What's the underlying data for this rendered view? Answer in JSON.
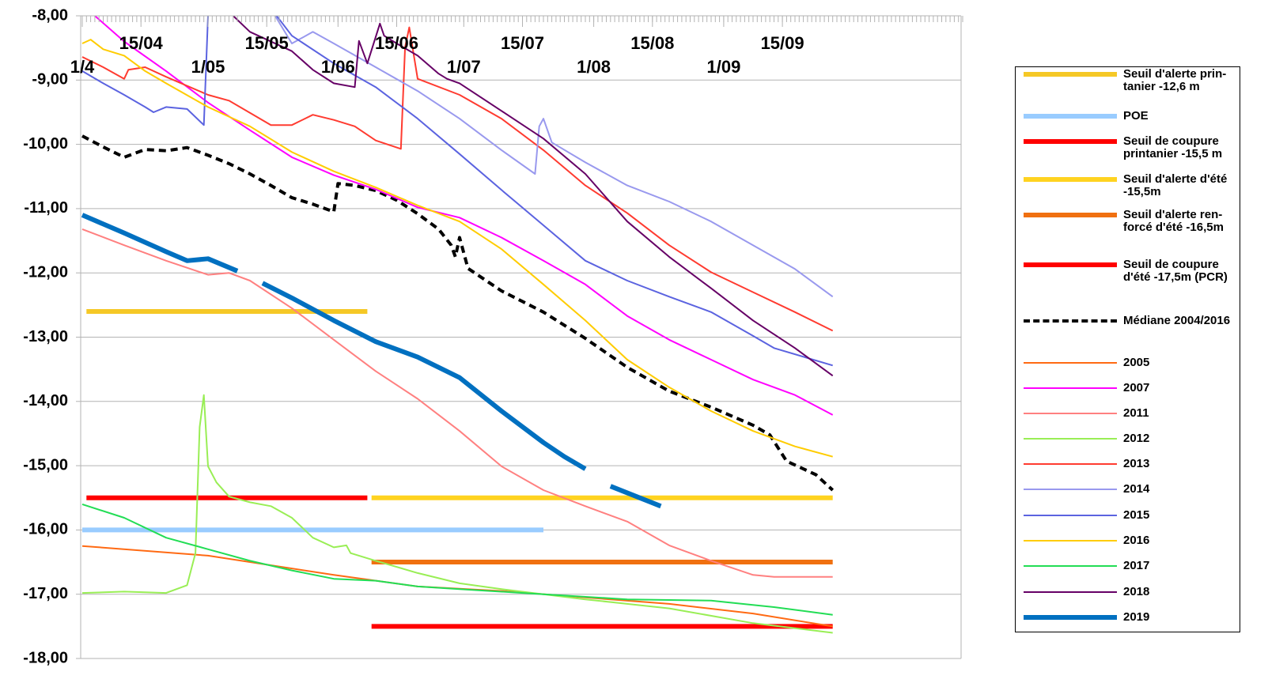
{
  "chart_data": {
    "type": "line",
    "xlim": [
      0,
      210
    ],
    "xticks": [
      {
        "value": 0,
        "label": "1/4"
      },
      {
        "value": 14,
        "label": "15/04"
      },
      {
        "value": 30,
        "label": "1/05"
      },
      {
        "value": 44,
        "label": "15/05"
      },
      {
        "value": 61,
        "label": "1/06"
      },
      {
        "value": 75,
        "label": "15/06"
      },
      {
        "value": 91,
        "label": "1/07"
      },
      {
        "value": 105,
        "label": "15/07"
      },
      {
        "value": 122,
        "label": "1/08"
      },
      {
        "value": 136,
        "label": "15/08"
      },
      {
        "value": 153,
        "label": "1/09"
      },
      {
        "value": 167,
        "label": "15/09"
      }
    ],
    "ylim": [
      -18,
      -8
    ],
    "yticks": [
      {
        "value": -8,
        "label": "-8,00"
      },
      {
        "value": -9,
        "label": "-9,00"
      },
      {
        "value": -10,
        "label": "-10,00"
      },
      {
        "value": -11,
        "label": "-11,00"
      },
      {
        "value": -12,
        "label": "-12,00"
      },
      {
        "value": -13,
        "label": "-13,00"
      },
      {
        "value": -14,
        "label": "-14,00"
      },
      {
        "value": -15,
        "label": "-15,00"
      },
      {
        "value": -16,
        "label": "-16,00"
      },
      {
        "value": -17,
        "label": "-17,00"
      },
      {
        "value": -18,
        "label": "-18,00"
      }
    ],
    "grid": true,
    "legend": "right",
    "series": [
      {
        "name": "Seuil d'alerte prin-tanier -12,6 m",
        "color": "#f5c826",
        "weight": "thick",
        "x": [
          1,
          68
        ],
        "values": [
          -12.6,
          -12.6
        ]
      },
      {
        "name": "POE",
        "color": "#99ccff",
        "weight": "thick",
        "x": [
          0,
          110
        ],
        "values": [
          -16,
          -16
        ]
      },
      {
        "name": "Seuil de coupure printanier -15,5 m",
        "color": "#ff0000",
        "weight": "thick",
        "x": [
          1,
          68
        ],
        "values": [
          -15.5,
          -15.5
        ]
      },
      {
        "name": "Seuil d'alerte d'été -15,5m",
        "color": "#ffd320",
        "weight": "thick",
        "x": [
          69,
          179
        ],
        "values": [
          -15.5,
          -15.5
        ]
      },
      {
        "name": "Seuil d'alerte ren-forcé d'été -16,5m",
        "color": "#f07010",
        "weight": "thick",
        "x": [
          69,
          179
        ],
        "values": [
          -16.5,
          -16.5
        ]
      },
      {
        "name": "Seuil de coupure d'été -17,5m (PCR)",
        "color": "#ff0000",
        "weight": "thick",
        "x": [
          69,
          179
        ],
        "values": [
          -17.5,
          -17.5
        ]
      },
      {
        "name": "Médiane 2004/2016",
        "color": "#000000",
        "weight": "medium",
        "line_style": "dashed",
        "x": [
          0,
          5,
          10,
          15,
          20,
          25,
          30,
          35,
          40,
          45,
          50,
          55,
          60,
          61,
          65,
          70,
          75,
          80,
          85,
          88,
          89,
          90,
          92,
          100,
          110,
          120,
          130,
          140,
          150,
          160,
          164,
          168,
          175,
          179
        ],
        "values": [
          -9.87,
          -10.04,
          -10.2,
          -10.08,
          -10.1,
          -10.05,
          -10.17,
          -10.3,
          -10.46,
          -10.64,
          -10.83,
          -10.93,
          -11.05,
          -10.61,
          -10.64,
          -10.72,
          -10.87,
          -11.08,
          -11.32,
          -11.57,
          -11.75,
          -11.45,
          -11.93,
          -12.28,
          -12.61,
          -13.02,
          -13.47,
          -13.84,
          -14.09,
          -14.37,
          -14.52,
          -14.93,
          -15.14,
          -15.38
        ]
      },
      {
        "name": "2005",
        "color": "#ff6a13",
        "x": [
          0,
          30,
          60,
          80,
          100,
          120,
          140,
          160,
          179
        ],
        "values": [
          -16.25,
          -16.4,
          -16.7,
          -16.88,
          -16.95,
          -17.05,
          -17.15,
          -17.3,
          -17.5
        ]
      },
      {
        "name": "2007",
        "color": "#ff00ff",
        "x": [
          3,
          10,
          20,
          30,
          40,
          50,
          60,
          70,
          80,
          90,
          100,
          110,
          120,
          130,
          140,
          150,
          160,
          170,
          179
        ],
        "values": [
          -8.0,
          -8.4,
          -8.86,
          -9.35,
          -9.78,
          -10.2,
          -10.48,
          -10.7,
          -10.98,
          -11.14,
          -11.45,
          -11.81,
          -12.18,
          -12.67,
          -13.04,
          -13.35,
          -13.66,
          -13.9,
          -14.21
        ]
      },
      {
        "name": "2011",
        "color": "#ff8080",
        "x": [
          0,
          10,
          20,
          30,
          35,
          40,
          50,
          60,
          70,
          80,
          90,
          100,
          110,
          120,
          130,
          140,
          150,
          160,
          165,
          179
        ],
        "values": [
          -11.32,
          -11.57,
          -11.81,
          -12.03,
          -12.0,
          -12.12,
          -12.55,
          -13.04,
          -13.53,
          -13.96,
          -14.46,
          -15.01,
          -15.38,
          -15.63,
          -15.87,
          -16.24,
          -16.48,
          -16.7,
          -16.73,
          -16.73
        ]
      },
      {
        "name": "2012",
        "color": "#99ee55",
        "x": [
          0,
          10,
          20,
          25,
          27,
          28,
          29,
          30,
          32,
          35,
          40,
          45,
          50,
          55,
          60,
          63,
          64,
          70,
          80,
          90,
          100,
          120,
          140,
          160,
          179
        ],
        "values": [
          -16.98,
          -16.96,
          -16.98,
          -16.86,
          -16.36,
          -14.4,
          -13.9,
          -15.01,
          -15.26,
          -15.48,
          -15.57,
          -15.63,
          -15.81,
          -16.12,
          -16.27,
          -16.24,
          -16.36,
          -16.48,
          -16.67,
          -16.83,
          -16.92,
          -17.08,
          -17.22,
          -17.45,
          -17.6
        ]
      },
      {
        "name": "2013",
        "color": "#ff3b30",
        "x": [
          0,
          5,
          10,
          11,
          15,
          20,
          30,
          35,
          40,
          45,
          50,
          55,
          60,
          65,
          70,
          76,
          77,
          78,
          80,
          90,
          100,
          110,
          120,
          130,
          140,
          150,
          160,
          170,
          179
        ],
        "values": [
          -8.64,
          -8.8,
          -8.98,
          -8.84,
          -8.8,
          -8.95,
          -9.23,
          -9.32,
          -9.51,
          -9.7,
          -9.7,
          -9.54,
          -9.62,
          -9.72,
          -9.94,
          -10.07,
          -8.49,
          -8.18,
          -8.98,
          -9.23,
          -9.6,
          -10.09,
          -10.64,
          -11.07,
          -11.57,
          -11.99,
          -12.3,
          -12.61,
          -12.9
        ]
      },
      {
        "name": "2014",
        "color": "#9999ee",
        "x": [
          46,
          50,
          55,
          60,
          70,
          80,
          90,
          100,
          108,
          109,
          110,
          112,
          120,
          130,
          140,
          150,
          160,
          170,
          179
        ],
        "values": [
          -8.0,
          -8.43,
          -8.25,
          -8.43,
          -8.8,
          -9.17,
          -9.6,
          -10.09,
          -10.46,
          -9.72,
          -9.6,
          -9.97,
          -10.28,
          -10.64,
          -10.89,
          -11.2,
          -11.57,
          -11.94,
          -12.37
        ]
      },
      {
        "name": "2015",
        "color": "#5b63e0",
        "x": [
          0,
          5,
          10,
          15,
          17,
          20,
          25,
          29,
          30,
          31,
          37,
          44,
          50,
          60,
          70,
          80,
          90,
          100,
          110,
          120,
          130,
          140,
          150,
          160,
          165,
          179
        ],
        "values": [
          -8.86,
          -9.05,
          -9.23,
          -9.42,
          -9.5,
          -9.42,
          -9.45,
          -9.7,
          -8.0,
          -7.6,
          null,
          -7.8,
          -8.31,
          -8.74,
          -9.11,
          -9.6,
          -10.15,
          -10.71,
          -11.26,
          -11.81,
          -12.12,
          -12.37,
          -12.61,
          -12.98,
          -13.17,
          -13.44
        ]
      },
      {
        "name": "2016",
        "color": "#ffcc00",
        "x": [
          0,
          2,
          5,
          10,
          15,
          20,
          30,
          40,
          50,
          60,
          70,
          80,
          90,
          100,
          110,
          120,
          130,
          140,
          150,
          160,
          170,
          179
        ],
        "values": [
          -8.43,
          -8.37,
          -8.52,
          -8.62,
          -8.86,
          -9.05,
          -9.42,
          -9.72,
          -10.12,
          -10.42,
          -10.67,
          -10.95,
          -11.2,
          -11.63,
          -12.18,
          -12.74,
          -13.35,
          -13.78,
          -14.15,
          -14.46,
          -14.7,
          -14.86
        ]
      },
      {
        "name": "2017",
        "color": "#22dd55",
        "x": [
          0,
          10,
          20,
          30,
          40,
          50,
          60,
          70,
          80,
          90,
          110,
          130,
          150,
          165,
          179
        ],
        "values": [
          -15.6,
          -15.81,
          -16.12,
          -16.3,
          -16.48,
          -16.63,
          -16.76,
          -16.79,
          -16.88,
          -16.92,
          -17.0,
          -17.08,
          -17.1,
          -17.2,
          -17.32
        ]
      },
      {
        "name": "2018",
        "color": "#660066",
        "x": [
          36,
          40,
          50,
          55,
          60,
          65,
          66,
          68,
          71,
          72,
          75,
          80,
          85,
          87,
          90,
          100,
          110,
          120,
          130,
          140,
          150,
          160,
          170,
          179
        ],
        "values": [
          -8.0,
          -8.25,
          -8.55,
          -8.84,
          -9.05,
          -9.11,
          -8.39,
          -8.74,
          -8.12,
          -8.31,
          -8.43,
          -8.62,
          -8.9,
          -8.98,
          -9.05,
          -9.48,
          -9.91,
          -10.46,
          -11.2,
          -11.75,
          -12.24,
          -12.74,
          -13.17,
          -13.6
        ]
      },
      {
        "name": "2019",
        "color": "#0070c0",
        "weight": "thick",
        "x": [
          0,
          10,
          20,
          25,
          30,
          37,
          40,
          43,
          50,
          60,
          70,
          80,
          90,
          100,
          110,
          115,
          120,
          123,
          126,
          133,
          138
        ],
        "values": [
          -11.1,
          -11.38,
          -11.67,
          -11.81,
          -11.78,
          -11.97,
          null,
          -12.16,
          -12.39,
          -12.74,
          -13.07,
          -13.31,
          -13.63,
          -14.15,
          -14.64,
          -14.86,
          -15.05,
          null,
          -15.32,
          -15.5,
          -15.63
        ]
      }
    ]
  }
}
